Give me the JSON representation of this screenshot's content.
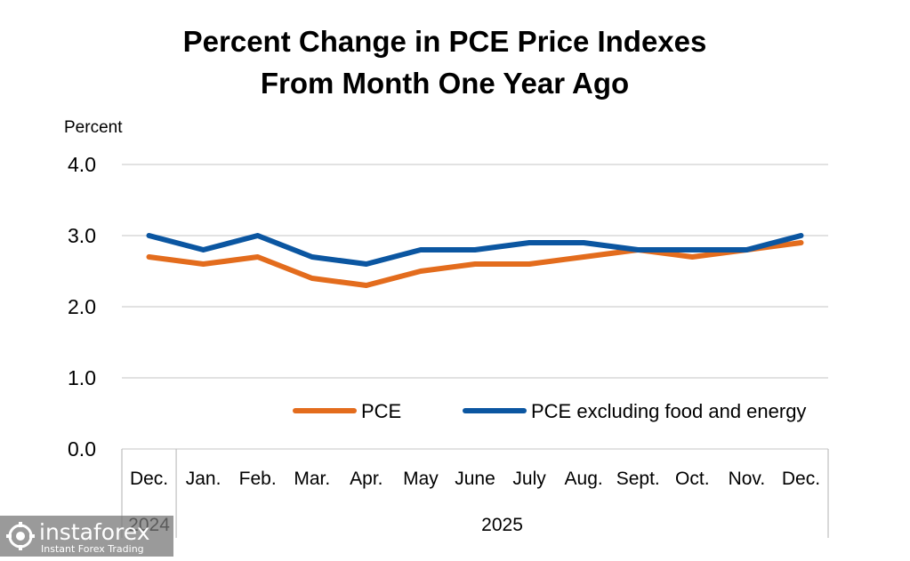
{
  "chart_data": {
    "type": "line",
    "title_lines": [
      "Percent Change in PCE Price Indexes",
      "From Month One Year Ago"
    ],
    "ylabel": "Percent",
    "ylim": [
      0,
      4
    ],
    "yticks": [
      "0.0",
      "1.0",
      "2.0",
      "3.0",
      "4.0"
    ],
    "categories": [
      "Dec.",
      "Jan.",
      "Feb.",
      "Mar.",
      "Apr.",
      "May",
      "June",
      "July",
      "Aug.",
      "Sept.",
      "Oct.",
      "Nov.",
      "Dec."
    ],
    "year_groups": [
      {
        "label": "2024",
        "span": 1
      },
      {
        "label": "2025",
        "span": 12
      }
    ],
    "series": [
      {
        "name": "PCE",
        "color": "#e36c1d",
        "values": [
          2.7,
          2.6,
          2.7,
          2.4,
          2.3,
          2.5,
          2.6,
          2.6,
          2.7,
          2.8,
          2.7,
          2.8,
          2.9
        ]
      },
      {
        "name": "PCE excluding food and energy",
        "color": "#0b56a1",
        "values": [
          3.0,
          2.8,
          3.0,
          2.7,
          2.6,
          2.8,
          2.8,
          2.9,
          2.9,
          2.8,
          2.8,
          2.8,
          3.0
        ]
      }
    ],
    "grid": true,
    "legend_position": "inside-bottom"
  },
  "watermark": {
    "brand": "instaforex",
    "tagline": "Instant Forex Trading"
  }
}
